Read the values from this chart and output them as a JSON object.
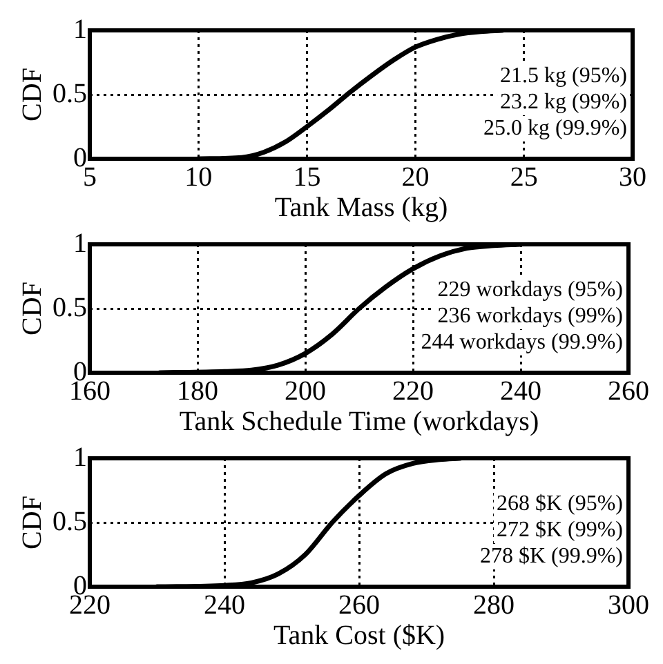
{
  "chart_data": [
    {
      "type": "line",
      "xlabel": "Tank Mass (kg)",
      "ylabel": "CDF",
      "xlim": [
        5,
        30
      ],
      "xticks": [
        5,
        10,
        15,
        20,
        25,
        30
      ],
      "ylim": [
        0,
        1
      ],
      "yticks": [
        0,
        0.5,
        1
      ],
      "grid": true,
      "legend": false,
      "marker": "none",
      "line_style": "solid",
      "series": [
        {
          "color": "#000000",
          "x": [
            10,
            12,
            13,
            14,
            15,
            16,
            17,
            18,
            19,
            20,
            21,
            22,
            23,
            24
          ],
          "values": [
            0,
            0.01,
            0.05,
            0.13,
            0.25,
            0.38,
            0.52,
            0.65,
            0.77,
            0.87,
            0.93,
            0.97,
            0.99,
            1
          ]
        }
      ],
      "annotations": [
        "21.5 kg (95%)",
        "23.2 kg (99%)",
        "25.0 kg (99.9%)"
      ]
    },
    {
      "type": "line",
      "xlabel": "Tank Schedule Time (workdays)",
      "ylabel": "CDF",
      "xlim": [
        160,
        260
      ],
      "xticks": [
        160,
        180,
        200,
        220,
        240,
        260
      ],
      "ylim": [
        0,
        1
      ],
      "yticks": [
        0,
        0.5,
        1
      ],
      "grid": true,
      "legend": false,
      "marker": "none",
      "line_style": "solid",
      "series": [
        {
          "color": "#000000",
          "x": [
            173,
            185,
            190,
            195,
            200,
            205,
            210,
            215,
            220,
            225,
            230,
            235,
            240
          ],
          "values": [
            0,
            0.01,
            0.02,
            0.06,
            0.15,
            0.3,
            0.5,
            0.67,
            0.81,
            0.91,
            0.97,
            0.99,
            1
          ]
        }
      ],
      "annotations": [
        "229 workdays (95%)",
        "236 workdays (99%)",
        "244 workdays (99.9%)"
      ]
    },
    {
      "type": "line",
      "xlabel": "Tank Cost ($K)",
      "ylabel": "CDF",
      "xlim": [
        220,
        300
      ],
      "xticks": [
        220,
        240,
        260,
        280,
        300
      ],
      "ylim": [
        0,
        1
      ],
      "yticks": [
        0,
        0.5,
        1
      ],
      "grid": true,
      "legend": false,
      "marker": "none",
      "line_style": "solid",
      "series": [
        {
          "color": "#000000",
          "x": [
            230,
            240,
            244,
            248,
            252,
            256,
            260,
            264,
            268,
            272,
            275
          ],
          "values": [
            0,
            0.01,
            0.03,
            0.1,
            0.25,
            0.5,
            0.71,
            0.88,
            0.96,
            0.99,
            1
          ]
        }
      ],
      "annotations": [
        "268 $K (95%)",
        "272 $K (99%)",
        "278 $K (99.9%)"
      ]
    }
  ]
}
